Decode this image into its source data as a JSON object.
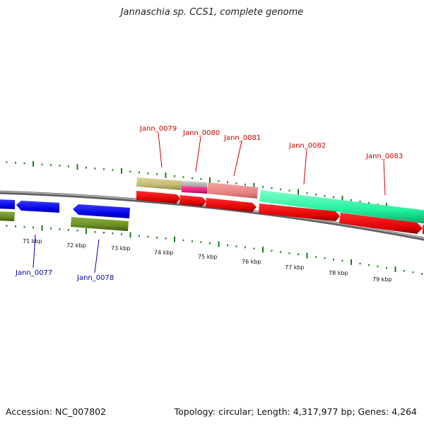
{
  "title": "Jannaschia sp. CCS1, complete genome",
  "footer": {
    "accession": "Accession: NC_007802",
    "stats": "Topology: circular; Length: 4,317,977 bp; Genes: 4,264"
  },
  "kbp_labels": [
    "71 kbp",
    "72 kbp",
    "73 kbp",
    "74 kbp",
    "75 kbp",
    "76 kbp",
    "77 kbp",
    "78 kbp",
    "79 kbp"
  ],
  "upper_gene_labels": [
    "Jann_0079",
    "Jann_0080",
    "Jann_0081",
    "Jann_0082",
    "Jann_0083"
  ],
  "lower_gene_labels": [
    "Jann_0077",
    "Jann_0078"
  ],
  "colors": {
    "upper_label": "#cc0000",
    "lower_label": "#0000aa",
    "forward_cds": "#ee0000",
    "reverse_cds": "#0000ee",
    "reverse_gene": "#6b8e23",
    "cog_khaki": "#c8c07a",
    "cog_pink": "#e8257d",
    "cog_salmon": "#e88080",
    "cog_aqua": "#22f5a0",
    "ticks": "#1a7a1a",
    "backbone": "#888888"
  }
}
